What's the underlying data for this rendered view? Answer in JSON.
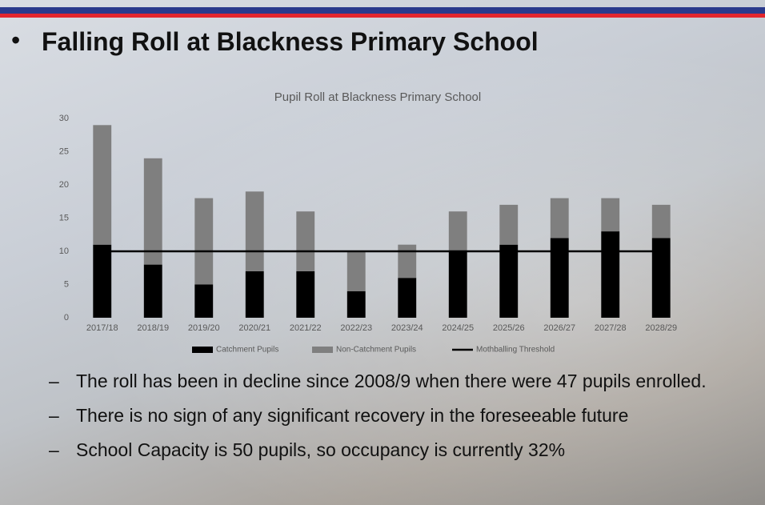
{
  "slide": {
    "title": "Falling Roll at Blackness Primary School"
  },
  "chart_data": {
    "type": "bar",
    "stacked": true,
    "title": "Pupil Roll at Blackness Primary School",
    "categories": [
      "2017/18",
      "2018/19",
      "2019/20",
      "2020/21",
      "2021/22",
      "2022/23",
      "2023/24",
      "2024/25",
      "2025/26",
      "2026/27",
      "2027/28",
      "2028/29"
    ],
    "series": [
      {
        "name": "Catchment Pupils",
        "color": "#000000",
        "values": [
          11,
          8,
          5,
          7,
          7,
          4,
          6,
          10,
          11,
          12,
          13,
          12
        ]
      },
      {
        "name": "Non-Catchment Pupils",
        "color": "#7f7f7f",
        "values": [
          18,
          16,
          13,
          12,
          9,
          6,
          5,
          6,
          6,
          6,
          5,
          5
        ]
      },
      {
        "name": "Mothballing Threshold",
        "type": "line",
        "color": "#000000",
        "values": [
          10,
          10,
          10,
          10,
          10,
          10,
          10,
          10,
          10,
          10,
          10,
          10
        ]
      }
    ],
    "ylim": [
      0,
      30
    ],
    "yticks": [
      0,
      5,
      10,
      15,
      20,
      25,
      30
    ],
    "grid": false,
    "legend": "bottom"
  },
  "bullets": [
    "The roll has been in decline since 2008/9 when there were 47 pupils enrolled.",
    "There is no sign of any significant recovery in the foreseeable future",
    "School Capacity is 50 pupils, so occupancy is currently 32%"
  ]
}
